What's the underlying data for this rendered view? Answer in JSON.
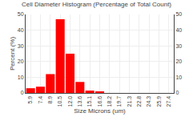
{
  "chart_data": {
    "type": "bar",
    "title": "Cell Diameter Histogram (Percentage of Total Count)",
    "xlabel": "Size Microns (um)",
    "ylabel": "Percent (%)",
    "categories": [
      "5.9",
      "7.4",
      "8.9",
      "10.5",
      "12.0",
      "13.6",
      "15.1",
      "16.6",
      "18.2",
      "19.7",
      "21.3",
      "22.8",
      "24.3",
      "25.9",
      "27.4"
    ],
    "values": [
      3.0,
      4.0,
      12.0,
      47.0,
      25.0,
      7.0,
      1.5,
      0.8,
      0.0,
      0.0,
      0.0,
      0.0,
      0.0,
      0.0,
      0.0
    ],
    "color": "#ff0000",
    "ylim": [
      0,
      50
    ],
    "yticks": [
      0,
      10,
      20,
      30,
      40,
      50
    ],
    "y2lim": [
      0,
      50
    ],
    "y2ticks": [
      0,
      10,
      20,
      30,
      40,
      50
    ],
    "grid": true
  }
}
